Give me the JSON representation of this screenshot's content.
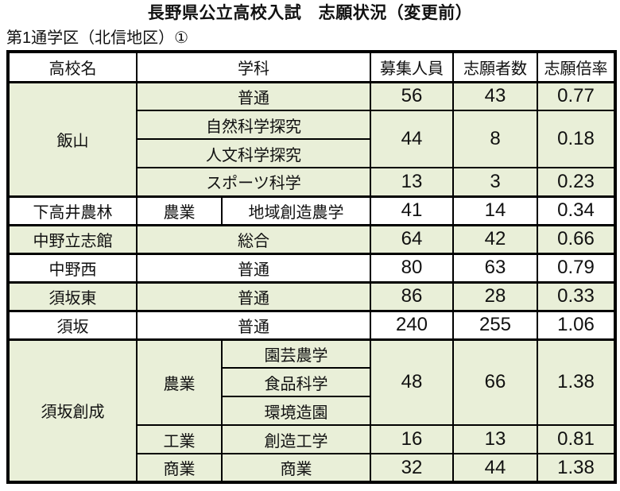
{
  "page": {
    "title": "長野県公立高校入試　志願状況（変更前）",
    "subtitle": "第1通学区（北信地区）①"
  },
  "colors": {
    "row_green": "#e9efd8",
    "row_white": "#ffffff",
    "border": "#000000",
    "text": "#111111"
  },
  "table": {
    "headers": {
      "school": "高校名",
      "dept": "学科",
      "capacity": "募集人員",
      "applicants": "志願者数",
      "ratio": "志願倍率"
    },
    "rows": [
      {
        "school": "飯山",
        "dept": "普通",
        "capacity": "56",
        "applicants": "43",
        "ratio": "0.77"
      },
      {
        "dept": "自然科学探究",
        "capacity": "44",
        "applicants": "8",
        "ratio": "0.18"
      },
      {
        "dept": "人文科学探究"
      },
      {
        "dept": "スポーツ科学",
        "capacity": "13",
        "applicants": "3",
        "ratio": "0.23"
      },
      {
        "school": "下高井農林",
        "dept_category": "農業",
        "dept": "地域創造農学",
        "capacity": "41",
        "applicants": "14",
        "ratio": "0.34"
      },
      {
        "school": "中野立志館",
        "dept": "総合",
        "capacity": "64",
        "applicants": "42",
        "ratio": "0.66"
      },
      {
        "school": "中野西",
        "dept": "普通",
        "capacity": "80",
        "applicants": "63",
        "ratio": "0.79"
      },
      {
        "school": "須坂東",
        "dept": "普通",
        "capacity": "86",
        "applicants": "28",
        "ratio": "0.33"
      },
      {
        "school": "須坂",
        "dept": "普通",
        "capacity": "240",
        "applicants": "255",
        "ratio": "1.06"
      },
      {
        "school": "須坂創成",
        "dept_category": "農業",
        "dept": "園芸農学",
        "capacity": "48",
        "applicants": "66",
        "ratio": "1.38"
      },
      {
        "dept": "食品科学"
      },
      {
        "dept": "環境造園"
      },
      {
        "dept_category": "工業",
        "dept": "創造工学",
        "capacity": "16",
        "applicants": "13",
        "ratio": "0.81"
      },
      {
        "dept_category": "商業",
        "dept": "商業",
        "capacity": "32",
        "applicants": "44",
        "ratio": "1.38"
      }
    ]
  }
}
